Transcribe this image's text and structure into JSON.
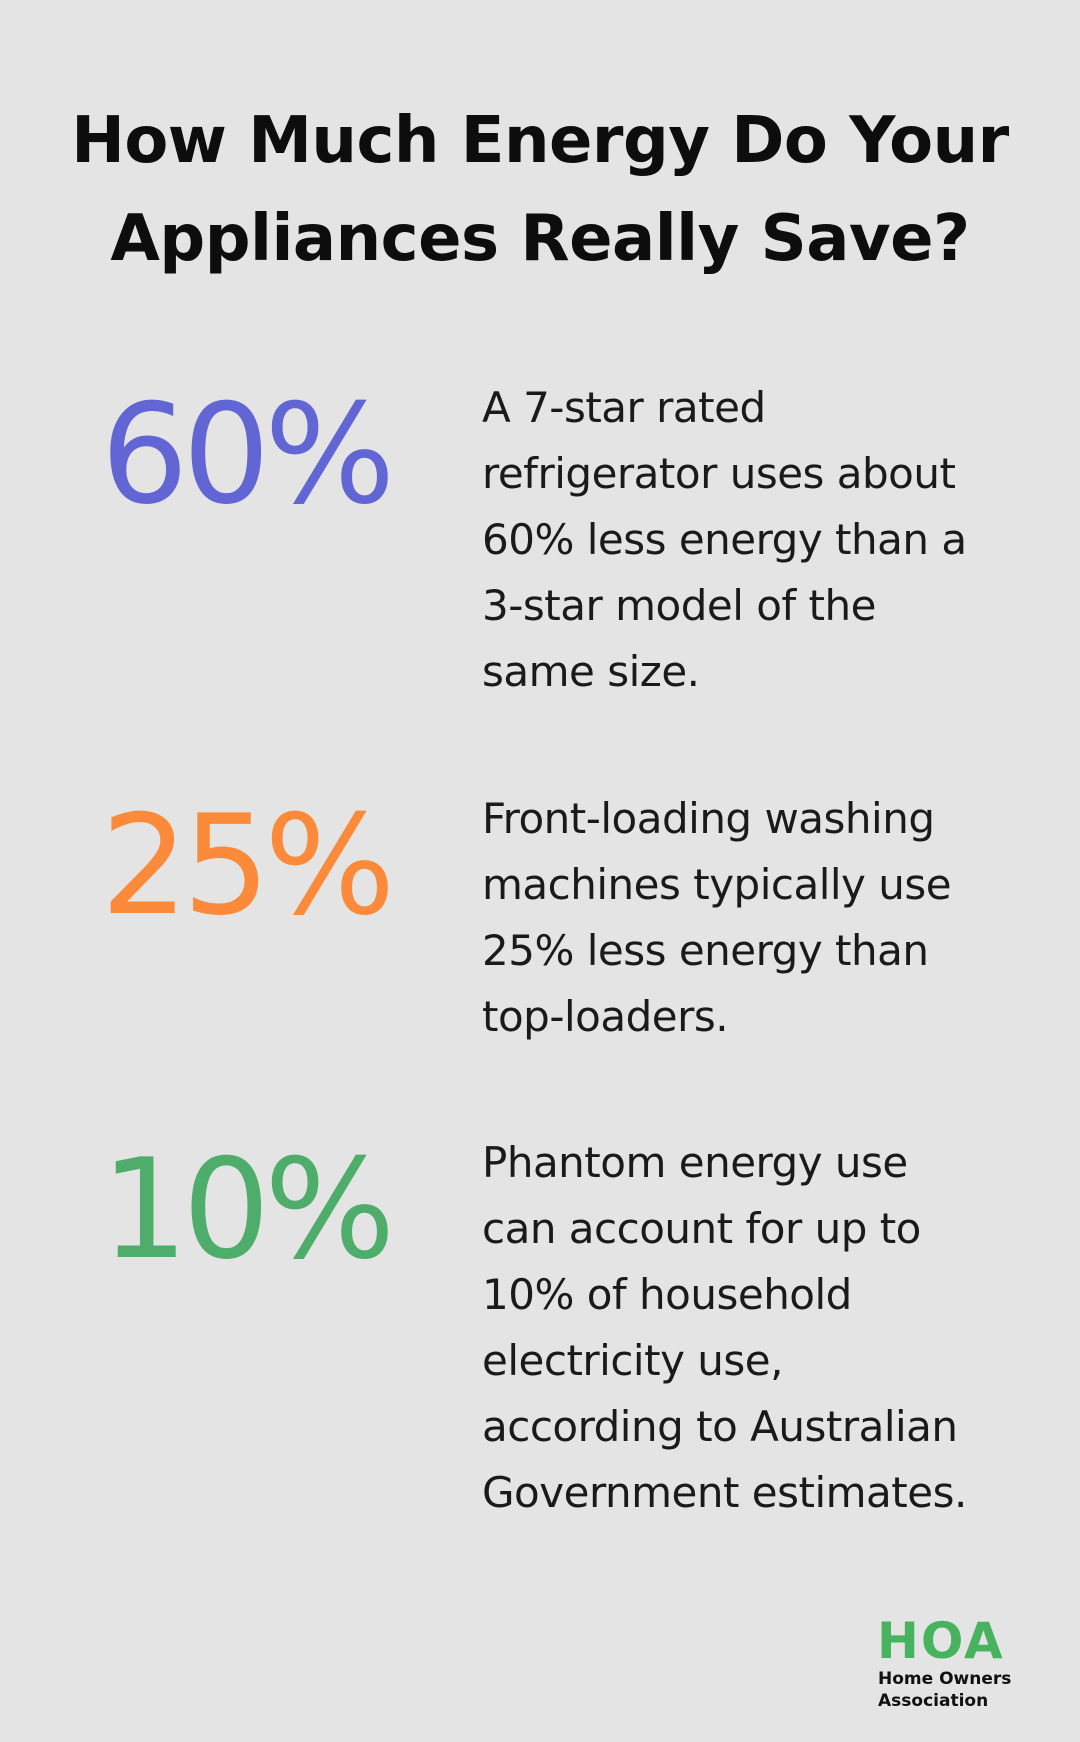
{
  "title_lines": [
    "How Much Energy Do Your",
    "Appliances Really Save?"
  ],
  "stats": [
    {
      "value": "60%",
      "color": "#6266d4",
      "text_lines": [
        "A 7-star rated",
        "refrigerator uses about",
        "60% less energy than a",
        "3-star model of the",
        "same size."
      ]
    },
    {
      "value": "25%",
      "color": "#fb8a3a",
      "text_lines": [
        "Front-loading washing",
        "machines typically use",
        "25% less energy than",
        "top-loaders."
      ]
    },
    {
      "value": "10%",
      "color": "#4fad6b",
      "text_lines": [
        "Phantom energy use",
        "can account for up to",
        "10% of household",
        "electricity use,",
        "according to Australian",
        "Government estimates."
      ]
    }
  ],
  "logo": {
    "mark": "HOA",
    "line1": "Home Owners",
    "line2": "Association",
    "color": "#47b35f"
  }
}
